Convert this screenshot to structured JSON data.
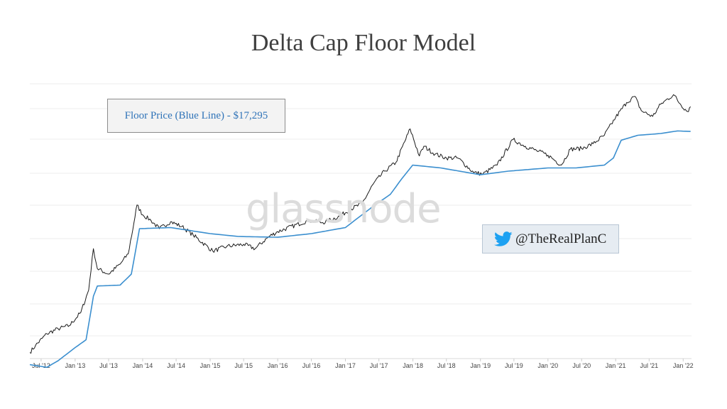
{
  "title": "Delta Cap Floor Model",
  "watermark": "glassnode",
  "annotation": {
    "floor_label": "Floor Price (Blue Line) - $17,295"
  },
  "attribution": {
    "handle": "@TheRealPlanC",
    "icon": "twitter-bird-icon",
    "icon_color": "#1da1f2"
  },
  "colors": {
    "price_line": "#1a1a1a",
    "floor_line": "#3b8fcf",
    "grid": "#ececec",
    "tick_text": "#444444"
  },
  "chart_data": {
    "type": "line",
    "title": "Delta Cap Floor Model",
    "xlabel": "",
    "ylabel": "",
    "y_scale": "log",
    "ylim": [
      4,
      100000
    ],
    "xlim": [
      "2012-05-01",
      "2022-02-15"
    ],
    "grid": true,
    "x_ticks": [
      "Jul '12",
      "Jan '13",
      "Jul '13",
      "Jan '14",
      "Jul '14",
      "Jan '15",
      "Jul '15",
      "Jan '16",
      "Jul '16",
      "Jan '17",
      "Jul '17",
      "Jan '18",
      "Jul '18",
      "Jan '19",
      "Jul '19",
      "Jan '20",
      "Jul '20",
      "Jan '21",
      "Jul '21",
      "Jan '22"
    ],
    "x_tick_dates": [
      "2012-07-01",
      "2013-01-01",
      "2013-07-01",
      "2014-01-01",
      "2014-07-01",
      "2015-01-01",
      "2015-07-01",
      "2016-01-01",
      "2016-07-01",
      "2017-01-01",
      "2017-07-01",
      "2018-01-01",
      "2018-07-01",
      "2019-01-01",
      "2019-07-01",
      "2020-01-01",
      "2020-07-01",
      "2021-01-01",
      "2021-07-01",
      "2022-01-01"
    ],
    "series": [
      {
        "role": "price",
        "x": [
          "2012-05-01",
          "2012-06-01",
          "2012-08-01",
          "2012-10-01",
          "2012-12-01",
          "2013-02-01",
          "2013-03-15",
          "2013-04-10",
          "2013-05-01",
          "2013-07-01",
          "2013-09-01",
          "2013-10-15",
          "2013-11-15",
          "2013-12-01",
          "2014-01-01",
          "2014-02-15",
          "2014-04-01",
          "2014-06-01",
          "2014-08-01",
          "2014-10-01",
          "2015-01-15",
          "2015-04-01",
          "2015-07-01",
          "2015-09-01",
          "2015-11-15",
          "2016-01-01",
          "2016-06-15",
          "2016-09-01",
          "2016-12-01",
          "2017-02-01",
          "2017-04-01",
          "2017-06-01",
          "2017-08-01",
          "2017-10-01",
          "2017-12-17",
          "2018-02-05",
          "2018-03-01",
          "2018-05-01",
          "2018-07-01",
          "2018-09-01",
          "2018-11-25",
          "2019-01-15",
          "2019-04-01",
          "2019-06-26",
          "2019-09-01",
          "2019-11-01",
          "2020-01-01",
          "2020-03-13",
          "2020-05-01",
          "2020-07-01",
          "2020-09-01",
          "2020-11-01",
          "2021-01-01",
          "2021-03-01",
          "2021-04-14",
          "2021-05-20",
          "2021-07-20",
          "2021-09-01",
          "2021-11-10",
          "2021-12-15",
          "2022-01-24",
          "2022-02-10"
        ],
        "y": [
          5,
          6.5,
          10,
          12,
          13.5,
          22,
          50,
          230,
          110,
          90,
          130,
          190,
          600,
          1150,
          800,
          650,
          480,
          620,
          520,
          380,
          210,
          250,
          270,
          230,
          360,
          430,
          650,
          600,
          760,
          1000,
          1200,
          2500,
          4000,
          5500,
          19000,
          7000,
          10000,
          7500,
          6500,
          6500,
          3800,
          3600,
          5000,
          12800,
          10000,
          8500,
          7200,
          5000,
          9000,
          9200,
          11000,
          15000,
          29000,
          50000,
          63000,
          37000,
          30000,
          47000,
          67000,
          48000,
          36000,
          43000
        ]
      },
      {
        "role": "floor",
        "name": "Floor Price (Blue Line)",
        "x": [
          "2012-05-01",
          "2012-08-01",
          "2012-10-01",
          "2013-01-01",
          "2013-03-01",
          "2013-04-10",
          "2013-05-01",
          "2013-09-01",
          "2013-11-01",
          "2013-12-15",
          "2014-06-01",
          "2015-01-01",
          "2015-06-01",
          "2016-01-01",
          "2016-07-01",
          "2017-01-01",
          "2017-06-01",
          "2017-09-01",
          "2017-11-01",
          "2017-12-31",
          "2018-06-01",
          "2019-01-01",
          "2019-06-01",
          "2020-01-01",
          "2020-06-01",
          "2020-11-01",
          "2020-12-20",
          "2021-01-31",
          "2021-05-01",
          "2021-09-01",
          "2021-12-01",
          "2022-02-10"
        ],
        "y": [
          3.2,
          2.9,
          3.7,
          6,
          8,
          40,
          58,
          60,
          90,
          480,
          500,
          400,
          360,
          350,
          400,
          500,
          1100,
          1700,
          3000,
          5000,
          4500,
          3500,
          4000,
          4500,
          4500,
          5000,
          6500,
          12500,
          15000,
          16000,
          17600,
          17295
        ]
      }
    ]
  }
}
